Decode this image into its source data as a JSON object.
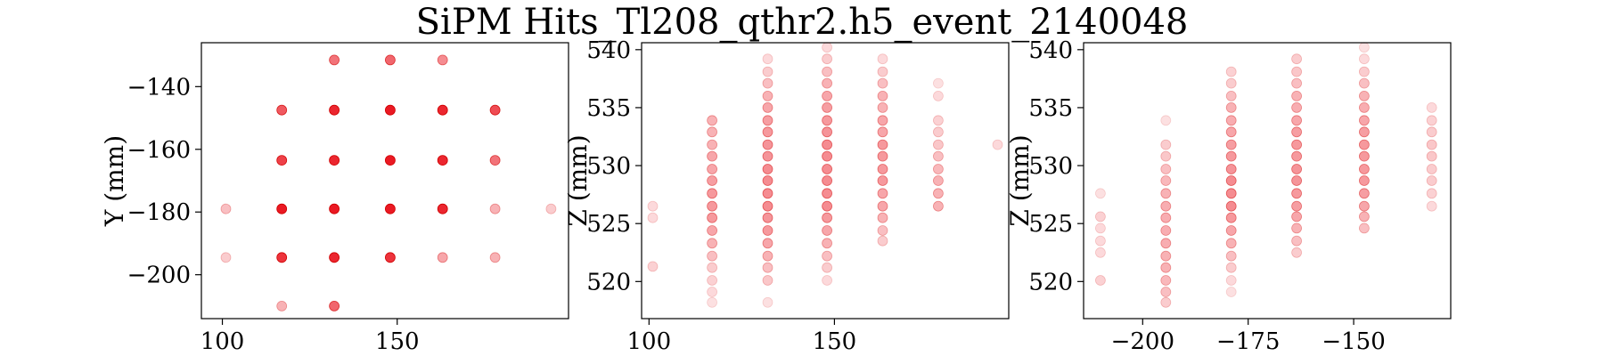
{
  "figure": {
    "title": "SiPM Hits_Tl208_qthr2.h5_event_2140048"
  },
  "colors": {
    "marker": "#e8000b",
    "marker_edge": "#d00000",
    "axes": "#000000"
  },
  "chart_data": [
    {
      "type": "scatter",
      "title": "",
      "xlabel": "",
      "ylabel": "Y (mm)",
      "xlim": [
        94,
        199
      ],
      "ylim": [
        -214,
        -126
      ],
      "xticks": [
        100,
        150
      ],
      "yticks": [
        -140,
        -160,
        -180,
        -200
      ],
      "points": [
        {
          "x": 132,
          "y": -131.5,
          "alpha": 0.55
        },
        {
          "x": 148,
          "y": -131.5,
          "alpha": 0.6
        },
        {
          "x": 163,
          "y": -131.5,
          "alpha": 0.45
        },
        {
          "x": 117,
          "y": -147.5,
          "alpha": 0.65
        },
        {
          "x": 132,
          "y": -147.5,
          "alpha": 0.85
        },
        {
          "x": 148,
          "y": -147.5,
          "alpha": 0.9
        },
        {
          "x": 163,
          "y": -147.5,
          "alpha": 0.85
        },
        {
          "x": 178,
          "y": -147.5,
          "alpha": 0.7
        },
        {
          "x": 117,
          "y": -163.5,
          "alpha": 0.75
        },
        {
          "x": 132,
          "y": -163.5,
          "alpha": 0.85
        },
        {
          "x": 148,
          "y": -163.5,
          "alpha": 0.9
        },
        {
          "x": 163,
          "y": -163.5,
          "alpha": 0.85
        },
        {
          "x": 178,
          "y": -163.5,
          "alpha": 0.55
        },
        {
          "x": 101,
          "y": -179,
          "alpha": 0.25
        },
        {
          "x": 117,
          "y": -179,
          "alpha": 0.9
        },
        {
          "x": 132,
          "y": -179,
          "alpha": 0.9
        },
        {
          "x": 148,
          "y": -179,
          "alpha": 0.9
        },
        {
          "x": 163,
          "y": -179,
          "alpha": 0.85
        },
        {
          "x": 178,
          "y": -179,
          "alpha": 0.3
        },
        {
          "x": 194,
          "y": -179,
          "alpha": 0.2
        },
        {
          "x": 101,
          "y": -194.5,
          "alpha": 0.2
        },
        {
          "x": 117,
          "y": -194.5,
          "alpha": 0.8
        },
        {
          "x": 132,
          "y": -194.5,
          "alpha": 0.85
        },
        {
          "x": 148,
          "y": -194.5,
          "alpha": 0.8
        },
        {
          "x": 163,
          "y": -194.5,
          "alpha": 0.35
        },
        {
          "x": 178,
          "y": -194.5,
          "alpha": 0.3
        },
        {
          "x": 117,
          "y": -210,
          "alpha": 0.3
        },
        {
          "x": 132,
          "y": -210,
          "alpha": 0.6
        }
      ]
    },
    {
      "type": "scatter",
      "title": "",
      "xlabel": "",
      "ylabel": "Z (mm)",
      "xlim": [
        98,
        197
      ],
      "ylim": [
        516.8,
        540.6
      ],
      "xticks": [
        100,
        150
      ],
      "yticks": [
        520,
        525,
        530,
        535,
        540
      ],
      "columns": [
        {
          "x": 101,
          "z": [
            521.3,
            525.5,
            526.5
          ],
          "alpha": [
            0.18,
            0.15,
            0.15
          ]
        },
        {
          "x": 117,
          "z": [
            518.2,
            519.1,
            520.1,
            521.2,
            522.2,
            523.3,
            524.4,
            525.5,
            526.5,
            527.6,
            528.7,
            529.7,
            530.8,
            531.8,
            532.9,
            533.9
          ],
          "alpha": [
            0.12,
            0.15,
            0.18,
            0.2,
            0.25,
            0.3,
            0.35,
            0.4,
            0.4,
            0.4,
            0.38,
            0.35,
            0.35,
            0.3,
            0.3,
            0.3
          ]
        },
        {
          "x": 132,
          "z": [
            518.2,
            520.1,
            521.2,
            522.2,
            523.3,
            524.4,
            525.5,
            526.5,
            527.6,
            528.7,
            529.7,
            530.8,
            531.8,
            532.9,
            533.9,
            535.0,
            536.0,
            537.1,
            538.1,
            539.2
          ],
          "alpha": [
            0.12,
            0.22,
            0.25,
            0.3,
            0.35,
            0.4,
            0.42,
            0.45,
            0.45,
            0.45,
            0.45,
            0.42,
            0.42,
            0.4,
            0.38,
            0.35,
            0.3,
            0.25,
            0.2,
            0.15
          ]
        },
        {
          "x": 148,
          "z": [
            520.1,
            521.2,
            522.2,
            523.3,
            524.4,
            525.5,
            526.5,
            527.6,
            528.7,
            529.7,
            530.8,
            531.8,
            532.9,
            533.9,
            535.0,
            536.0,
            537.1,
            538.1,
            539.2,
            540.2
          ],
          "alpha": [
            0.15,
            0.2,
            0.25,
            0.3,
            0.35,
            0.4,
            0.45,
            0.45,
            0.45,
            0.45,
            0.45,
            0.45,
            0.42,
            0.4,
            0.38,
            0.35,
            0.3,
            0.25,
            0.2,
            0.15
          ]
        },
        {
          "x": 163,
          "z": [
            523.5,
            524.4,
            525.5,
            526.5,
            527.6,
            528.7,
            529.7,
            530.8,
            531.8,
            532.9,
            533.9,
            535.0,
            536.0,
            537.1,
            538.1,
            539.2
          ],
          "alpha": [
            0.2,
            0.25,
            0.3,
            0.35,
            0.35,
            0.4,
            0.4,
            0.4,
            0.4,
            0.35,
            0.35,
            0.3,
            0.3,
            0.25,
            0.2,
            0.15
          ]
        },
        {
          "x": 178,
          "z": [
            526.5,
            527.6,
            528.7,
            529.7,
            530.8,
            531.8,
            532.9,
            533.9,
            536.0,
            537.1
          ],
          "alpha": [
            0.3,
            0.3,
            0.3,
            0.28,
            0.25,
            0.22,
            0.2,
            0.18,
            0.15,
            0.12
          ]
        },
        {
          "x": 194,
          "z": [
            531.8
          ],
          "alpha": [
            0.15
          ]
        }
      ]
    },
    {
      "type": "scatter",
      "title": "",
      "xlabel": "",
      "ylabel": "Z (mm)",
      "xlim": [
        -214,
        -127
      ],
      "ylim": [
        516.8,
        540.6
      ],
      "xticks": [
        -200,
        -175,
        -150
      ],
      "yticks": [
        520,
        525,
        530,
        535,
        540
      ],
      "columns": [
        {
          "x": -210,
          "z": [
            520.1,
            522.5,
            523.5,
            524.6,
            525.6,
            527.6
          ],
          "alpha": [
            0.18,
            0.15,
            0.15,
            0.15,
            0.18,
            0.12
          ]
        },
        {
          "x": -194.5,
          "z": [
            518.2,
            519.1,
            520.1,
            521.2,
            522.2,
            523.3,
            524.4,
            525.5,
            526.5,
            527.6,
            528.7,
            529.7,
            530.8,
            531.8,
            533.9
          ],
          "alpha": [
            0.2,
            0.25,
            0.28,
            0.3,
            0.3,
            0.32,
            0.32,
            0.32,
            0.32,
            0.3,
            0.28,
            0.25,
            0.22,
            0.2,
            0.12
          ]
        },
        {
          "x": -179,
          "z": [
            519.1,
            520.1,
            521.2,
            522.2,
            523.3,
            524.4,
            525.5,
            526.5,
            527.6,
            528.7,
            529.7,
            530.8,
            531.8,
            532.9,
            533.9,
            535.0,
            536.0,
            537.1,
            538.1
          ],
          "alpha": [
            0.12,
            0.15,
            0.2,
            0.25,
            0.3,
            0.35,
            0.4,
            0.45,
            0.45,
            0.45,
            0.42,
            0.4,
            0.38,
            0.35,
            0.32,
            0.3,
            0.25,
            0.2,
            0.18
          ]
        },
        {
          "x": -163.5,
          "z": [
            522.5,
            523.5,
            524.6,
            525.6,
            526.5,
            527.6,
            528.7,
            529.7,
            530.8,
            531.8,
            532.9,
            533.9,
            535.0,
            536.0,
            537.1,
            538.1,
            539.2
          ],
          "alpha": [
            0.2,
            0.25,
            0.3,
            0.35,
            0.38,
            0.4,
            0.42,
            0.42,
            0.4,
            0.4,
            0.38,
            0.35,
            0.32,
            0.3,
            0.25,
            0.22,
            0.2
          ]
        },
        {
          "x": -147.5,
          "z": [
            524.6,
            525.6,
            526.5,
            527.6,
            528.7,
            529.7,
            530.8,
            531.8,
            532.9,
            533.9,
            535.0,
            536.0,
            537.1,
            538.1,
            539.2,
            540.2
          ],
          "alpha": [
            0.25,
            0.3,
            0.35,
            0.38,
            0.4,
            0.4,
            0.4,
            0.4,
            0.38,
            0.35,
            0.32,
            0.3,
            0.25,
            0.2,
            0.15,
            0.12
          ]
        },
        {
          "x": -131.5,
          "z": [
            526.5,
            527.6,
            528.7,
            529.7,
            530.8,
            531.8,
            532.9,
            533.9,
            535.0
          ],
          "alpha": [
            0.15,
            0.18,
            0.2,
            0.2,
            0.22,
            0.22,
            0.2,
            0.18,
            0.15
          ]
        }
      ]
    }
  ]
}
